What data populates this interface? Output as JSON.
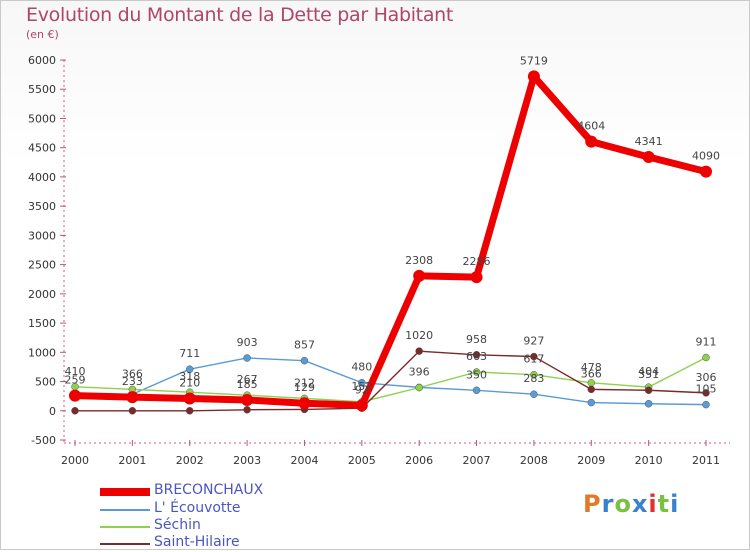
{
  "header": {
    "title": "Evolution du Montant de la Dette par Habitant",
    "subtitle": "(en €)"
  },
  "logo": {
    "text": "Proxiti",
    "colors": [
      "#e07a2b",
      "#3a7fd0",
      "#7ac143",
      "#3a7fd0",
      "#e03030",
      "#7ac143",
      "#3a7fd0"
    ]
  },
  "chart_data": {
    "type": "line",
    "x": [
      "2000",
      "2001",
      "2002",
      "2003",
      "2004",
      "2005",
      "2006",
      "2007",
      "2008",
      "2009",
      "2010",
      "2011"
    ],
    "ylim": [
      -500,
      6000
    ],
    "yticks": [
      -500,
      0,
      500,
      1000,
      1500,
      2000,
      2500,
      3000,
      3500,
      4000,
      4500,
      5000,
      5500,
      6000
    ],
    "grid": false,
    "legend_position": "bottom-left",
    "series": [
      {
        "name": "BRECONCHAUX",
        "color": "#ee0000",
        "values": [
          259,
          233,
          210,
          185,
          129,
          92,
          2308,
          2286,
          5719,
          4604,
          4341,
          4090
        ],
        "labels": [
          "259",
          "233",
          "210",
          "185",
          "129",
          "92",
          "2308",
          "2286",
          "5719",
          "4604",
          "4341",
          "4090"
        ]
      },
      {
        "name": "L' Écouvotte",
        "color": "#5b9bd5",
        "values": [
          286,
          283,
          711,
          903,
          857,
          480,
          400,
          350,
          283,
          140,
          120,
          105
        ],
        "labels": [
          "",
          "",
          "711",
          "903",
          "857",
          "480",
          "",
          "350",
          "283",
          "",
          "",
          "105"
        ]
      },
      {
        "name": "Séchin",
        "color": "#8fd14f",
        "values": [
          410,
          366,
          318,
          267,
          212,
          152,
          396,
          663,
          617,
          478,
          404,
          911
        ],
        "labels": [
          "410",
          "366",
          "318",
          "267",
          "212",
          "152",
          "396",
          "663",
          "617",
          "478",
          "404",
          "911"
        ]
      },
      {
        "name": "Saint-Hilaire",
        "color": "#7a2a2a",
        "values": [
          0,
          0,
          0,
          17,
          23,
          44,
          1020,
          958,
          927,
          366,
          351,
          306
        ],
        "labels": [
          "",
          "",
          "",
          "",
          "",
          "",
          "1020",
          "958",
          "927",
          "366",
          "351",
          "306"
        ]
      }
    ]
  }
}
